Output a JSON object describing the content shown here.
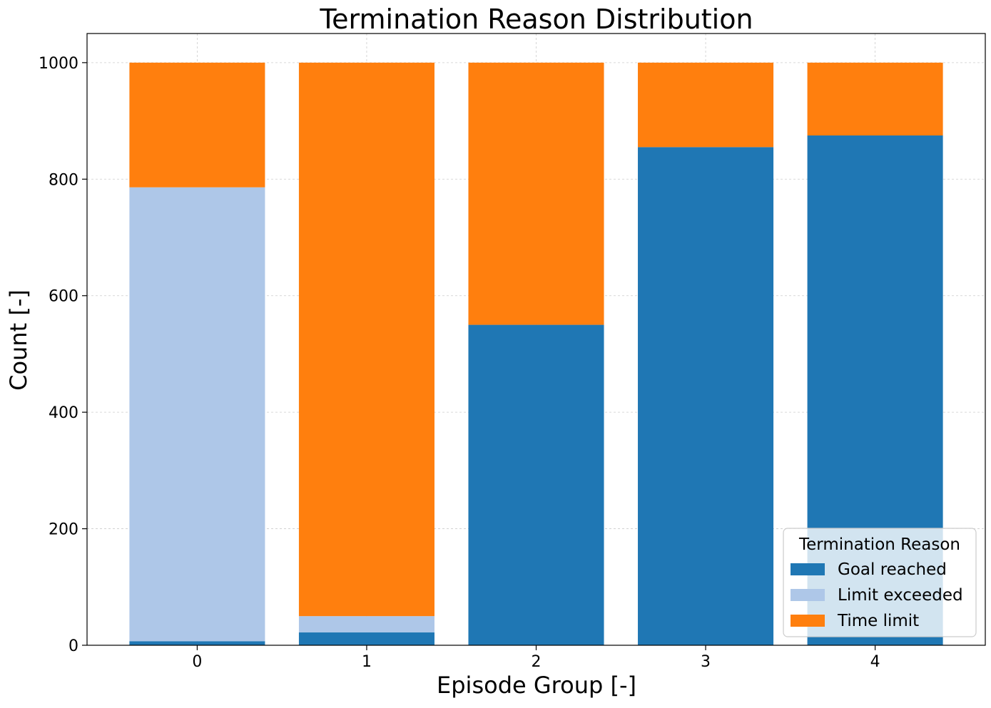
{
  "chart_data": {
    "type": "bar",
    "stacked": true,
    "title": "Termination Reason Distribution",
    "xlabel": "Episode Group [-]",
    "ylabel": "Count [-]",
    "categories": [
      "0",
      "1",
      "2",
      "3",
      "4"
    ],
    "ylim": [
      0,
      1050
    ],
    "yticks": [
      0,
      200,
      400,
      600,
      800,
      1000
    ],
    "grid": true,
    "legend": {
      "title": "Termination Reason",
      "placement": "lower-right"
    },
    "series": [
      {
        "name": "Goal reached",
        "color": "#1f77b4",
        "values": [
          7,
          22,
          550,
          855,
          875
        ]
      },
      {
        "name": "Limit exceeded",
        "color": "#aec7e8",
        "values": [
          779,
          28,
          0,
          0,
          0
        ]
      },
      {
        "name": "Time limit",
        "color": "#ff7f0e",
        "values": [
          214,
          950,
          450,
          145,
          125
        ]
      }
    ]
  }
}
